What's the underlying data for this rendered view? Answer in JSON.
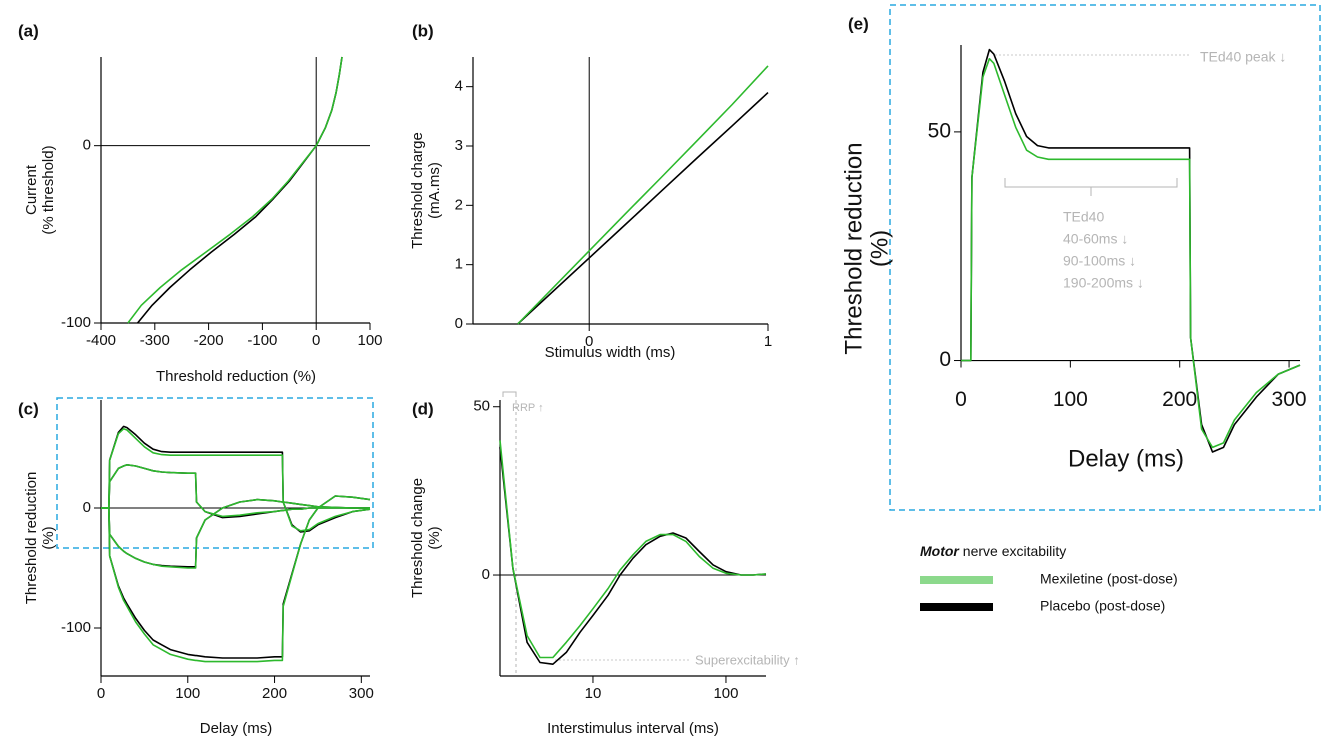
{
  "legend": {
    "title": [
      "Motor",
      "nerve excitability"
    ]
  },
  "chart_data": [
    {
      "type": "line",
      "label": "(a)",
      "xlabel": "Threshold reduction (%)",
      "ylabel": [
        "Current",
        "(% threshold)"
      ],
      "xlim": [
        -400,
        100
      ],
      "xticks": [
        -400,
        -300,
        -200,
        -100,
        0,
        100
      ],
      "ylim": [
        -100,
        50
      ],
      "yticks": [
        -100,
        0
      ],
      "series": [
        {
          "name": "Mexiletine (post-dose)",
          "color": "#2db92d",
          "x": [
            -350,
            -325,
            -290,
            -250,
            -205,
            -160,
            -118,
            -82,
            -52,
            -26,
            0,
            17,
            29,
            37,
            43,
            48
          ],
          "values": [
            -100,
            -90,
            -80,
            -70,
            -60,
            -50,
            -40,
            -30,
            -20,
            -10,
            0,
            10,
            20,
            30,
            40,
            50
          ]
        },
        {
          "name": "Placebo (post-dose)",
          "color": "#000000",
          "x": [
            -332,
            -305,
            -272,
            -235,
            -195,
            -152,
            -112,
            -80,
            -50,
            -25,
            0,
            17,
            29,
            37,
            43,
            48
          ],
          "values": [
            -100,
            -90,
            -80,
            -70,
            -60,
            -50,
            -40,
            -30,
            -20,
            -10,
            0,
            10,
            20,
            30,
            40,
            50
          ]
        }
      ]
    },
    {
      "type": "line",
      "label": "(b)",
      "xlabel": "Stimulus width (ms)",
      "ylabel": [
        "Threshold charge",
        "(mA.ms)"
      ],
      "xlim": [
        -0.65,
        1
      ],
      "xticks": [
        0,
        1
      ],
      "ylim": [
        0,
        4.5
      ],
      "yticks": [
        0,
        1,
        2,
        3,
        4
      ],
      "series": [
        {
          "color": "#2db92d",
          "x": [
            -0.4,
            0.2,
            0.4,
            0.6,
            0.8,
            1
          ],
          "values": [
            0,
            1.85,
            2.46,
            3.08,
            3.7,
            4.35
          ]
        },
        {
          "color": "#000000",
          "x": [
            -0.4,
            0.2,
            0.4,
            0.6,
            0.8,
            1
          ],
          "values": [
            0,
            1.67,
            2.23,
            2.79,
            3.34,
            3.9
          ]
        }
      ]
    },
    {
      "type": "line",
      "label": "(c)",
      "xlabel": "Delay (ms)",
      "ylabel": [
        "Threshold reduction",
        "(%)"
      ],
      "xlim": [
        0,
        310
      ],
      "xticks": [
        0,
        100,
        200,
        300
      ],
      "ylim": [
        -140,
        90
      ],
      "yticks": [
        -100,
        0
      ],
      "x": [
        0,
        9,
        10,
        20,
        26,
        30,
        40,
        50,
        60,
        70,
        80,
        100,
        109,
        110,
        120,
        140,
        160,
        180,
        200,
        209,
        210,
        220,
        230,
        240,
        250,
        270,
        290,
        310
      ],
      "series": [
        {
          "color": "#2db92d",
          "values": [
            0,
            0,
            40,
            62,
            66,
            65,
            58,
            51,
            46,
            44.5,
            44,
            44,
            44,
            44,
            44,
            44,
            44,
            44,
            44,
            44,
            5,
            -15,
            -19,
            -18,
            -13,
            -7,
            -3,
            -1
          ]
        },
        {
          "color": "#2db92d",
          "values": [
            0,
            0,
            22,
            33,
            35,
            36,
            35,
            33,
            31,
            30,
            29.5,
            29,
            29,
            5,
            -3,
            -7,
            -6,
            -4,
            -3,
            -2,
            -2,
            -1,
            -1,
            0,
            0,
            0,
            0,
            0
          ]
        },
        {
          "color": "#2db92d",
          "values": [
            0,
            0,
            -22,
            -32,
            -36,
            -38,
            -42,
            -45,
            -47,
            -48.5,
            -49,
            -50,
            -50,
            -25,
            -10,
            0,
            5,
            7,
            6,
            5,
            5,
            4,
            3,
            2,
            1,
            0.5,
            0,
            0
          ]
        },
        {
          "color": "#2db92d",
          "values": [
            0,
            0,
            -40,
            -66,
            -77,
            -82,
            -95,
            -105,
            -114,
            -118,
            -122,
            -126,
            -127,
            -127,
            -128,
            -128,
            -128,
            -128,
            -127,
            -127,
            -82,
            -56,
            -30,
            -10,
            0,
            10,
            9,
            7
          ]
        },
        {
          "color": "#000000",
          "values": [
            0,
            0,
            40,
            63,
            68,
            67,
            61,
            54,
            49,
            47,
            46.5,
            46.5,
            46.5,
            46.5,
            46.5,
            46.5,
            46.5,
            46.5,
            46.5,
            46.5,
            5,
            -14,
            -20,
            -19,
            -14,
            -8,
            -3,
            -1
          ]
        },
        {
          "color": "#000000",
          "values": [
            0,
            0,
            22,
            33,
            35,
            36,
            35,
            33,
            31,
            30,
            29.5,
            29,
            29,
            5,
            -3,
            -8,
            -7,
            -5,
            -3,
            -2,
            -2,
            -1,
            -1,
            0,
            0,
            0,
            0,
            0
          ]
        },
        {
          "color": "#000000",
          "values": [
            0,
            0,
            -22,
            -32,
            -36,
            -38,
            -42,
            -45,
            -47,
            -48,
            -48.5,
            -49,
            -49,
            -25,
            -10,
            0,
            5,
            7,
            6,
            5,
            5,
            4,
            3,
            2,
            1,
            0.5,
            0,
            0
          ]
        },
        {
          "color": "#000000",
          "values": [
            0,
            0,
            -40,
            -65,
            -75,
            -80,
            -92,
            -102,
            -110,
            -114,
            -118,
            -122,
            -123,
            -123,
            -124,
            -125,
            -125,
            -125,
            -124,
            -124,
            -80,
            -55,
            -30,
            -10,
            0,
            10,
            9,
            7
          ]
        }
      ]
    },
    {
      "type": "line",
      "label": "(d)",
      "xlabel": "Interstimulus interval (ms)",
      "ylabel": [
        "Threshold change",
        "(%)"
      ],
      "xscale": "log",
      "xlim": [
        2,
        200
      ],
      "xticks": [
        10,
        100
      ],
      "ylim": [
        -30,
        52
      ],
      "yticks": [
        0,
        50
      ],
      "annotations": [
        "RRP ↑",
        "Superexcitability ↑"
      ],
      "x": [
        2,
        2.5,
        3.2,
        4,
        5,
        6.3,
        8,
        10,
        13,
        16,
        20,
        25,
        32,
        40,
        50,
        63,
        80,
        100,
        130,
        160,
        200
      ],
      "series": [
        {
          "color": "#2db92d",
          "values": [
            40,
            2,
            -18,
            -24.5,
            -24.5,
            -20,
            -15,
            -10,
            -4,
            1.5,
            6,
            10,
            12,
            12,
            10,
            5.5,
            2,
            0.5,
            0,
            0,
            0.3
          ]
        },
        {
          "color": "#000000",
          "values": [
            38,
            2,
            -20,
            -26,
            -26.5,
            -23,
            -17,
            -12,
            -6,
            0,
            5,
            9,
            11.5,
            12.5,
            11,
            7,
            3,
            1,
            0,
            0,
            0.3
          ]
        }
      ]
    },
    {
      "type": "line",
      "label": "(e)",
      "xlabel": "Delay (ms)",
      "ylabel": [
        "Threshold reduction",
        "(%)"
      ],
      "xlim": [
        0,
        310
      ],
      "xticks": [
        0,
        100,
        200,
        300
      ],
      "ylim": [
        -20,
        69
      ],
      "yticks": [
        0,
        50
      ],
      "annotations": [
        "TEd40 peak ↓",
        "TEd40",
        "40-60ms ↓",
        "90-100ms ↓",
        "190-200ms ↓"
      ],
      "x": [
        0,
        9,
        10,
        20,
        26,
        30,
        40,
        50,
        60,
        70,
        80,
        100,
        109,
        110,
        120,
        140,
        160,
        180,
        200,
        209,
        210,
        220,
        230,
        240,
        250,
        270,
        290,
        310
      ],
      "series": [
        {
          "color": "#2db92d",
          "values": [
            0,
            0,
            40,
            62,
            66,
            65,
            58,
            51,
            46,
            44.5,
            44,
            44,
            44,
            44,
            44,
            44,
            44,
            44,
            44,
            44,
            5,
            -15,
            -19,
            -18,
            -13,
            -7,
            -3,
            -1
          ]
        },
        {
          "color": "#000000",
          "values": [
            0,
            0,
            40,
            63,
            68,
            67,
            61,
            54,
            49,
            47,
            46.5,
            46.5,
            46.5,
            46.5,
            46.5,
            46.5,
            46.5,
            46.5,
            46.5,
            46.5,
            5,
            -14,
            -20,
            -19,
            -14,
            -8,
            -3,
            -1
          ]
        }
      ]
    }
  ]
}
